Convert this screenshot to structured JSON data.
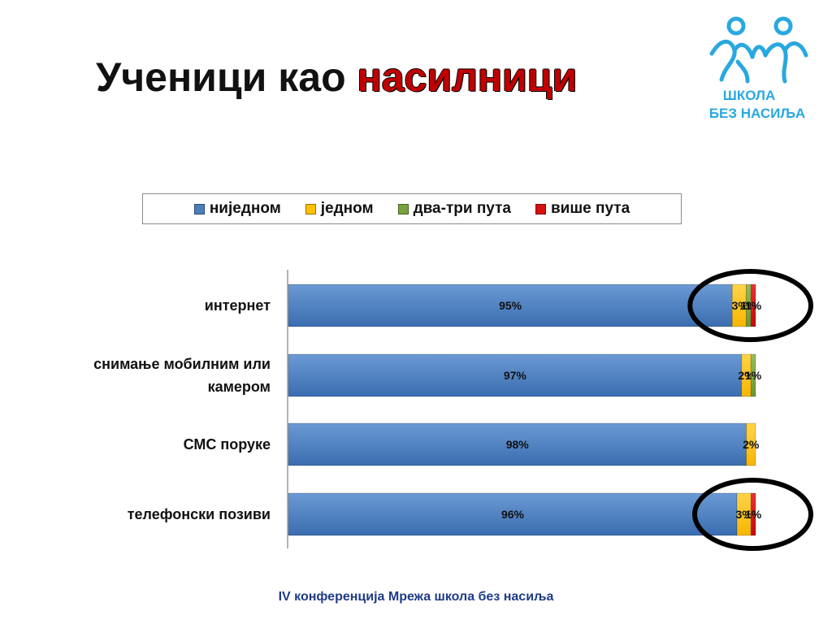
{
  "title": {
    "prefix": "Ученици као",
    "accent": "насилници"
  },
  "logo": {
    "line1": "ШКОЛА",
    "line2": "БЕЗ НАСИЉА"
  },
  "footer": "IV конференција Мрежа школа без насиља",
  "colors": {
    "ниједном": "#4a7ebb",
    "једном": "#ffc000",
    "два-три пута": "#77a33c",
    "више пута": "#d81010",
    "circle": "#000000",
    "logo": "#29a8e0"
  },
  "chart_data": {
    "type": "bar",
    "orientation": "horizontal",
    "stacked": true,
    "categories": [
      "интернет",
      "снимање мобилним или камером",
      "СМС поруке",
      "телефонски позиви"
    ],
    "category_lines": [
      [
        "интернет"
      ],
      [
        "снимање мобилним или",
        "камером"
      ],
      [
        "СМС поруке"
      ],
      [
        "телефонски позиви"
      ]
    ],
    "series": [
      {
        "name": "ниједном",
        "values": [
          95,
          97,
          98,
          96
        ],
        "labels": [
          "95%",
          "97%",
          "98%",
          "96%"
        ]
      },
      {
        "name": "једном",
        "values": [
          3,
          2,
          2,
          3
        ],
        "labels": [
          "3%",
          "2%",
          "2%",
          "3%"
        ]
      },
      {
        "name": "два-три пута",
        "values": [
          1,
          1,
          0,
          0
        ],
        "labels": [
          "1%",
          "1%",
          "",
          ""
        ]
      },
      {
        "name": "више пута",
        "values": [
          1,
          0,
          0,
          1
        ],
        "labels": [
          "1%",
          "",
          "",
          "1%"
        ]
      }
    ],
    "xlim": [
      0,
      100
    ],
    "legend_position": "top",
    "highlighted_categories": [
      "интернет",
      "телефонски позиви"
    ]
  }
}
